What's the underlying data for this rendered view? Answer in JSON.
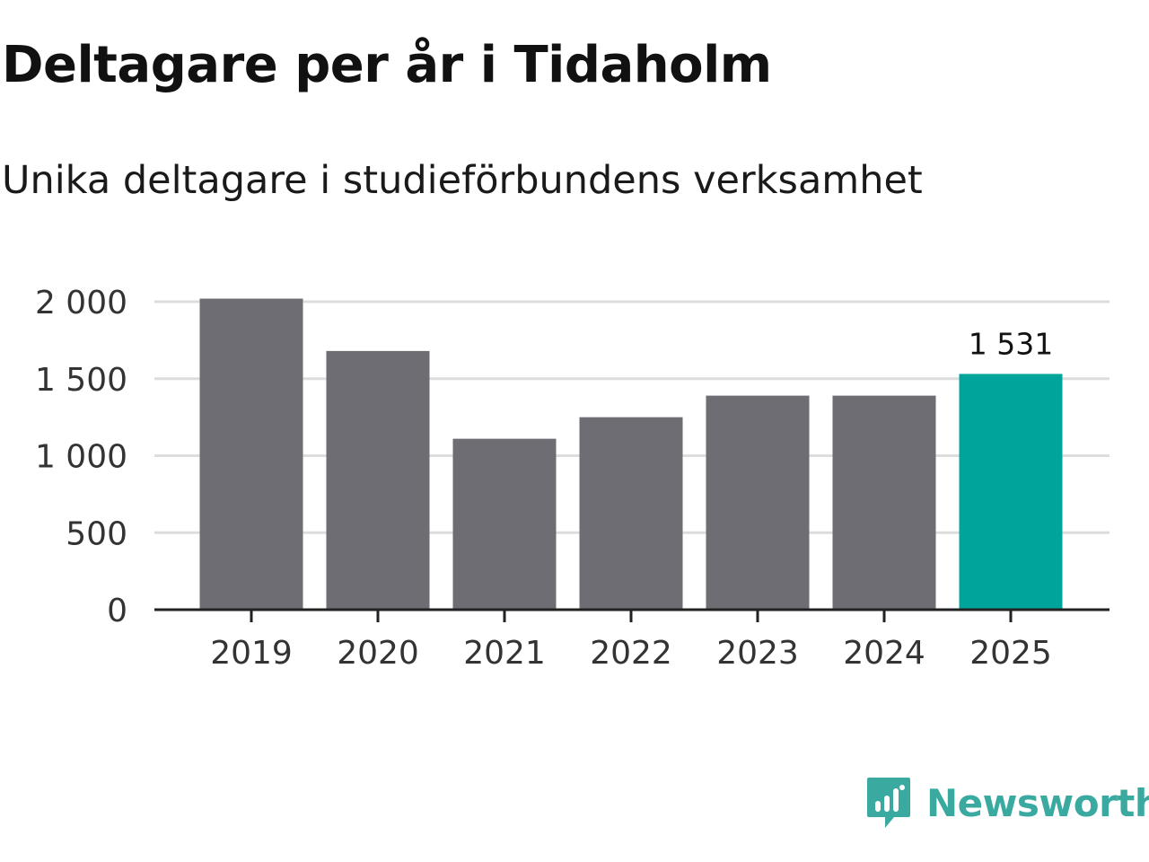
{
  "header": {
    "title": "Deltagare per år i Tidaholm",
    "subtitle": "Unika deltagare i studieförbundens verksamhet"
  },
  "brand": {
    "name": "Newsworthy",
    "icon": "bar-chart-bubble-icon",
    "color": "#3aa9a0"
  },
  "colors": {
    "bar": "#6e6d73",
    "highlight": "#00a49a",
    "grid": "#dddddd",
    "axis": "#222222",
    "text": "#333333"
  },
  "chart_data": {
    "type": "bar",
    "title": "Deltagare per år i Tidaholm",
    "subtitle": "Unika deltagare i studieförbundens verksamhet",
    "xlabel": "",
    "ylabel": "",
    "categories": [
      "2019",
      "2020",
      "2021",
      "2022",
      "2023",
      "2024",
      "2025"
    ],
    "values": [
      2020,
      1680,
      1110,
      1250,
      1390,
      1390,
      1531
    ],
    "highlight_index": 6,
    "data_labels": [
      {
        "index": 6,
        "text": "1 531"
      }
    ],
    "ylim": [
      0,
      2000
    ],
    "yticks": [
      0,
      500,
      1000,
      1500,
      2000
    ],
    "ytick_labels": [
      "0",
      "500",
      "1 000",
      "1 500",
      "2 000"
    ],
    "grid": true,
    "legend": "none"
  }
}
